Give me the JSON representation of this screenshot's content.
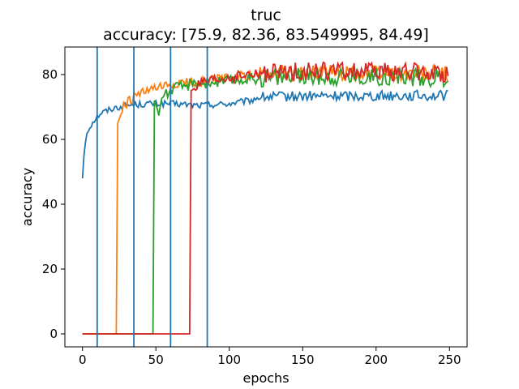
{
  "chart_data": {
    "type": "line",
    "title": "truc",
    "subtitle": "accuracy: [75.9, 82.36, 83.549995, 84.49]",
    "xlabel": "epochs",
    "ylabel": "accuracy",
    "xlim": [
      -12,
      262
    ],
    "ylim": [
      -4,
      88.5
    ],
    "xticks": [
      0,
      50,
      100,
      150,
      200,
      250
    ],
    "yticks": [
      0,
      20,
      40,
      60,
      80
    ],
    "grid": false,
    "legend": "none",
    "vlines": {
      "color": "#1f77b4",
      "x": [
        10,
        35,
        60,
        85
      ]
    },
    "series": [
      {
        "color": "#1f77b4",
        "start": 0,
        "keypoints": [
          [
            0,
            48
          ],
          [
            1,
            55
          ],
          [
            2,
            59
          ],
          [
            3,
            62
          ],
          [
            5,
            64
          ],
          [
            8,
            66
          ],
          [
            12,
            68
          ],
          [
            20,
            69.5
          ],
          [
            30,
            70.5
          ],
          [
            45,
            71
          ],
          [
            60,
            71
          ],
          [
            80,
            70.5
          ],
          [
            100,
            71
          ],
          [
            115,
            72
          ],
          [
            120,
            73
          ],
          [
            150,
            73.3
          ],
          [
            200,
            73.5
          ],
          [
            249,
            73.5
          ]
        ],
        "noise": 1.0
      },
      {
        "color": "#ff7f0e",
        "start": 0,
        "zero_until": 23,
        "keypoints": [
          [
            24,
            65
          ],
          [
            28,
            70
          ],
          [
            35,
            73
          ],
          [
            45,
            75
          ],
          [
            55,
            76
          ],
          [
            65,
            77
          ],
          [
            80,
            78
          ],
          [
            100,
            79
          ],
          [
            120,
            80
          ],
          [
            150,
            80.5
          ],
          [
            200,
            80.5
          ],
          [
            249,
            80
          ]
        ],
        "noise": 1.6
      },
      {
        "color": "#2ca02c",
        "start": 0,
        "zero_until": 48,
        "keypoints": [
          [
            49,
            72
          ],
          [
            52,
            68
          ],
          [
            55,
            74
          ],
          [
            65,
            76
          ],
          [
            75,
            77
          ],
          [
            85,
            77.5
          ],
          [
            100,
            78
          ],
          [
            120,
            79
          ],
          [
            150,
            79.5
          ],
          [
            200,
            79.5
          ],
          [
            249,
            79
          ]
        ],
        "noise": 1.8
      },
      {
        "color": "#d62728",
        "start": 0,
        "zero_until": 73,
        "keypoints": [
          [
            74,
            75
          ],
          [
            80,
            77
          ],
          [
            90,
            78
          ],
          [
            100,
            79
          ],
          [
            120,
            80
          ],
          [
            150,
            81
          ],
          [
            200,
            81
          ],
          [
            249,
            80.5
          ]
        ],
        "noise": 1.8
      }
    ]
  }
}
